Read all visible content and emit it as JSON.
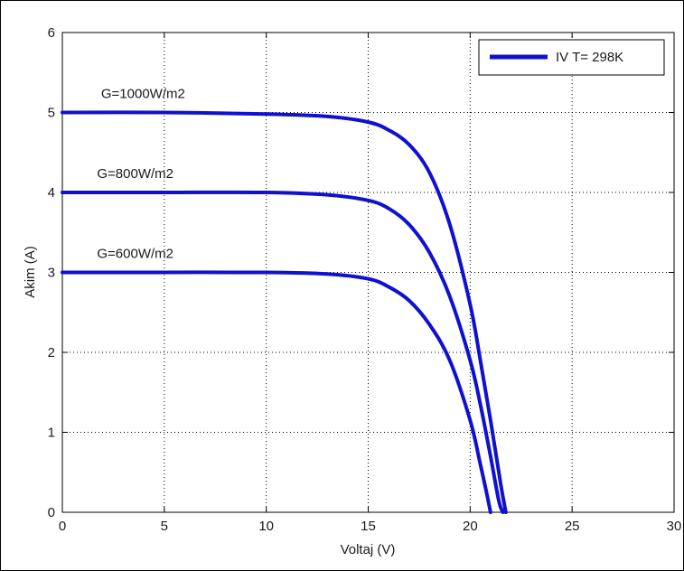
{
  "chart_data": {
    "type": "line",
    "xlabel": "Voltaj (V)",
    "ylabel": "Akim (A)",
    "xlim": [
      0,
      30
    ],
    "ylim": [
      0,
      6
    ],
    "x_ticks": [
      "0",
      "5",
      "10",
      "15",
      "20",
      "25",
      "30"
    ],
    "y_ticks": [
      "0",
      "1",
      "2",
      "3",
      "4",
      "5",
      "6"
    ],
    "grid": true,
    "legend": {
      "position": "top-right",
      "entries": [
        "IV T= 298K"
      ]
    },
    "line_color": "#1010d0",
    "annotations": [
      {
        "text": "G=1000W/m2",
        "x": 1.9,
        "y": 5.18
      },
      {
        "text": "G=800W/m2",
        "x": 1.7,
        "y": 4.18
      },
      {
        "text": "G=600W/m2",
        "x": 1.7,
        "y": 3.18
      }
    ],
    "series": [
      {
        "irradiance": "G=1000W/m2",
        "x": [
          0,
          5,
          10,
          13,
          15,
          16,
          17,
          18,
          19,
          20,
          20.5,
          21,
          21.5,
          21.75
        ],
        "y": [
          5.0,
          5.0,
          4.98,
          4.95,
          4.88,
          4.78,
          4.6,
          4.25,
          3.6,
          2.6,
          1.9,
          1.15,
          0.35,
          0
        ]
      },
      {
        "irradiance": "G=800W/m2",
        "x": [
          0,
          5,
          10,
          13,
          15,
          16,
          17,
          18,
          19,
          20,
          20.5,
          21,
          21.4,
          21.6
        ],
        "y": [
          4.0,
          4.0,
          4.0,
          3.97,
          3.9,
          3.8,
          3.6,
          3.25,
          2.7,
          1.9,
          1.35,
          0.7,
          0.15,
          0
        ]
      },
      {
        "irradiance": "G=600W/m2",
        "x": [
          0,
          5,
          10,
          13,
          15,
          16,
          17,
          18,
          19,
          20,
          20.5,
          20.8,
          21.0
        ],
        "y": [
          3.0,
          3.0,
          3.0,
          2.98,
          2.92,
          2.82,
          2.65,
          2.35,
          1.9,
          1.15,
          0.6,
          0.25,
          0
        ]
      }
    ]
  }
}
